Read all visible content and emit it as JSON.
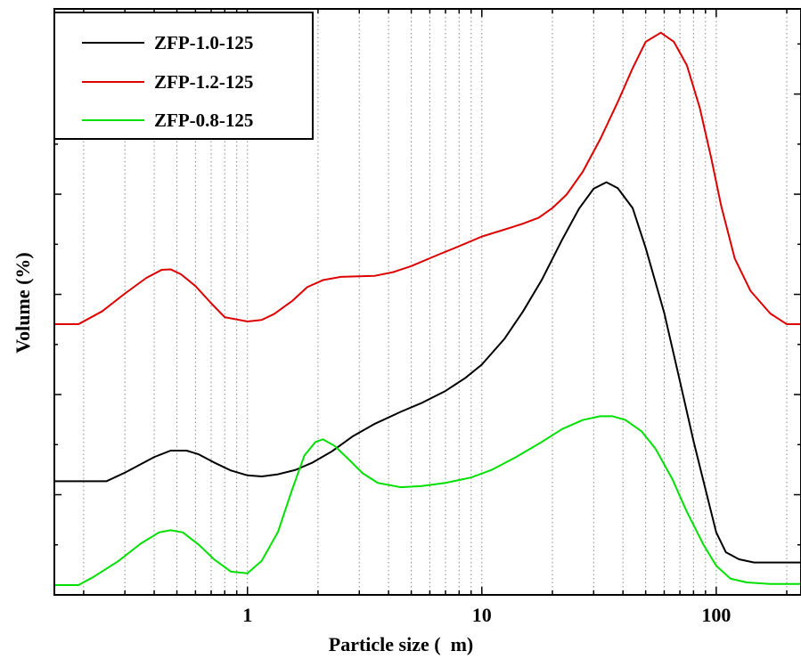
{
  "chart_data": {
    "type": "line",
    "xlabel": "Particle size (  m)",
    "ylabel": "Volume (%)",
    "x_scale": "log",
    "xlim": [
      0.15,
      230
    ],
    "ylim": [
      0,
      1
    ],
    "y_tick_labels_shown": false,
    "grid": {
      "vertical_minor": true,
      "horizontal": false
    },
    "x_tick_labels": [
      {
        "value": 1,
        "label": "1"
      },
      {
        "value": 10,
        "label": "10"
      },
      {
        "value": 100,
        "label": "100"
      }
    ],
    "legend": {
      "position": "top-left"
    },
    "series": [
      {
        "name": "ZFP-1.0-125",
        "color": "#000000",
        "points": [
          [
            0.15,
            0.193
          ],
          [
            0.25,
            0.193
          ],
          [
            0.3,
            0.209
          ],
          [
            0.4,
            0.238
          ],
          [
            0.47,
            0.25
          ],
          [
            0.55,
            0.25
          ],
          [
            0.62,
            0.243
          ],
          [
            0.72,
            0.228
          ],
          [
            0.85,
            0.213
          ],
          [
            1.0,
            0.204
          ],
          [
            1.15,
            0.202
          ],
          [
            1.35,
            0.206
          ],
          [
            1.6,
            0.214
          ],
          [
            1.9,
            0.228
          ],
          [
            2.3,
            0.249
          ],
          [
            2.8,
            0.276
          ],
          [
            3.5,
            0.3
          ],
          [
            4.5,
            0.322
          ],
          [
            5.5,
            0.338
          ],
          [
            7,
            0.361
          ],
          [
            8.5,
            0.385
          ],
          [
            10,
            0.41
          ],
          [
            12.5,
            0.458
          ],
          [
            15,
            0.509
          ],
          [
            18,
            0.567
          ],
          [
            22,
            0.642
          ],
          [
            26,
            0.7
          ],
          [
            30,
            0.737
          ],
          [
            34,
            0.749
          ],
          [
            38,
            0.738
          ],
          [
            44,
            0.701
          ],
          [
            50,
            0.627
          ],
          [
            60,
            0.506
          ],
          [
            70,
            0.379
          ],
          [
            80,
            0.268
          ],
          [
            90,
            0.178
          ],
          [
            100,
            0.098
          ],
          [
            110,
            0.061
          ],
          [
            125,
            0.048
          ],
          [
            145,
            0.042
          ],
          [
            170,
            0.042
          ],
          [
            230,
            0.042
          ]
        ]
      },
      {
        "name": "ZFP-1.2-125",
        "color": "#dd0000",
        "points": [
          [
            0.15,
            0.485
          ],
          [
            0.19,
            0.485
          ],
          [
            0.24,
            0.509
          ],
          [
            0.3,
            0.542
          ],
          [
            0.37,
            0.571
          ],
          [
            0.43,
            0.586
          ],
          [
            0.47,
            0.587
          ],
          [
            0.52,
            0.578
          ],
          [
            0.6,
            0.556
          ],
          [
            0.7,
            0.524
          ],
          [
            0.8,
            0.498
          ],
          [
            1.0,
            0.49
          ],
          [
            1.15,
            0.493
          ],
          [
            1.3,
            0.504
          ],
          [
            1.55,
            0.528
          ],
          [
            1.8,
            0.554
          ],
          [
            2.1,
            0.567
          ],
          [
            2.5,
            0.573
          ],
          [
            3.0,
            0.574
          ],
          [
            3.5,
            0.575
          ],
          [
            4.2,
            0.582
          ],
          [
            5,
            0.593
          ],
          [
            6.5,
            0.614
          ],
          [
            8,
            0.63
          ],
          [
            10,
            0.648
          ],
          [
            12.5,
            0.661
          ],
          [
            15,
            0.672
          ],
          [
            17.5,
            0.683
          ],
          [
            20,
            0.701
          ],
          [
            23,
            0.726
          ],
          [
            27,
            0.769
          ],
          [
            32,
            0.829
          ],
          [
            38,
            0.898
          ],
          [
            44,
            0.961
          ],
          [
            50,
            1.01
          ],
          [
            58,
            1.027
          ],
          [
            66,
            1.01
          ],
          [
            75,
            0.966
          ],
          [
            85,
            0.888
          ],
          [
            95,
            0.796
          ],
          [
            105,
            0.705
          ],
          [
            120,
            0.607
          ],
          [
            140,
            0.547
          ],
          [
            170,
            0.505
          ],
          [
            200,
            0.485
          ],
          [
            230,
            0.485
          ]
        ]
      },
      {
        "name": "ZFP-0.8-125",
        "color": "#00e000",
        "points": [
          [
            0.15,
            0.0
          ],
          [
            0.19,
            0.0
          ],
          [
            0.22,
            0.015
          ],
          [
            0.28,
            0.044
          ],
          [
            0.35,
            0.077
          ],
          [
            0.42,
            0.098
          ],
          [
            0.47,
            0.102
          ],
          [
            0.53,
            0.098
          ],
          [
            0.62,
            0.075
          ],
          [
            0.72,
            0.048
          ],
          [
            0.85,
            0.025
          ],
          [
            1.0,
            0.022
          ],
          [
            1.15,
            0.045
          ],
          [
            1.35,
            0.099
          ],
          [
            1.55,
            0.177
          ],
          [
            1.75,
            0.241
          ],
          [
            1.95,
            0.266
          ],
          [
            2.1,
            0.271
          ],
          [
            2.35,
            0.259
          ],
          [
            2.7,
            0.234
          ],
          [
            3.1,
            0.208
          ],
          [
            3.6,
            0.19
          ],
          [
            4.5,
            0.182
          ],
          [
            5.5,
            0.184
          ],
          [
            7,
            0.19
          ],
          [
            9,
            0.2
          ],
          [
            11,
            0.214
          ],
          [
            14,
            0.238
          ],
          [
            18,
            0.266
          ],
          [
            22,
            0.29
          ],
          [
            27,
            0.307
          ],
          [
            32,
            0.314
          ],
          [
            36,
            0.314
          ],
          [
            41,
            0.307
          ],
          [
            48,
            0.286
          ],
          [
            55,
            0.254
          ],
          [
            65,
            0.197
          ],
          [
            75,
            0.136
          ],
          [
            88,
            0.076
          ],
          [
            100,
            0.036
          ],
          [
            115,
            0.012
          ],
          [
            135,
            0.005
          ],
          [
            170,
            0.002
          ],
          [
            230,
            0.002
          ]
        ]
      }
    ]
  }
}
